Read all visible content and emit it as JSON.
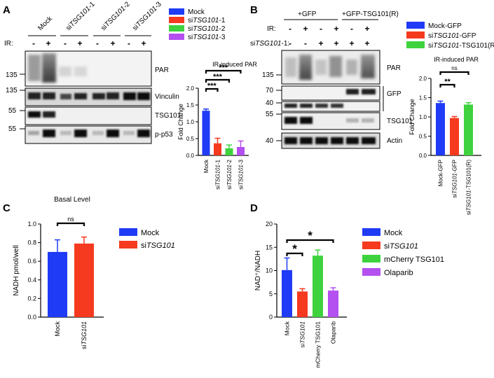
{
  "panels": {
    "A": {
      "letter": "A",
      "lanes": [
        {
          "label": "Mock"
        },
        {
          "prefix": "si",
          "italic": "TSG101",
          "suffix": "-1"
        },
        {
          "prefix": "si",
          "italic": "TSG101",
          "suffix": "-2"
        },
        {
          "prefix": "si",
          "italic": "TSG101",
          "suffix": "-3"
        }
      ],
      "ir_label": "IR:",
      "ir_signs": [
        "-",
        "+",
        "-",
        "+",
        "-",
        "+",
        "-",
        "+"
      ],
      "blots": [
        {
          "label": "PAR",
          "mw": "135"
        },
        {
          "label": "Vinculin",
          "mw": "135"
        },
        {
          "label": "TSG101",
          "mw": "55"
        },
        {
          "label": "p-p53",
          "mw": "55"
        }
      ],
      "legend": [
        {
          "prefix": "",
          "italic": "",
          "suffix": "Mock",
          "color": "#1f3bf5"
        },
        {
          "prefix": "si",
          "italic": "TSG101",
          "suffix": "-1",
          "color": "#f53a1f"
        },
        {
          "prefix": "si",
          "italic": "TSG101",
          "suffix": "-2",
          "color": "#3ed23e"
        },
        {
          "prefix": "si",
          "italic": "TSG101",
          "suffix": "-3",
          "color": "#b44ff0"
        }
      ]
    },
    "B": {
      "letter": "B",
      "groups": [
        "+GFP",
        "+GFP-TSG101(R)"
      ],
      "ir_label": "IR:",
      "ir_signs": [
        "-",
        "+",
        "-",
        "+",
        "-",
        "+"
      ],
      "si_label_prefix": "si",
      "si_label_italic": "TSG101",
      "si_label_suffix": "-1:",
      "si_signs": [
        "-",
        "-",
        "+",
        "+",
        "+",
        "+"
      ],
      "blots": [
        {
          "label": "PAR",
          "mw": "135"
        },
        {
          "label": "GFP",
          "mw": "70",
          "mw2": "40"
        },
        {
          "label": "TSG101",
          "mw": "55"
        },
        {
          "label": "Actin",
          "mw": "40"
        }
      ],
      "legend": [
        {
          "prefix": "Mock-GFP",
          "italic": "",
          "suffix": "",
          "color": "#1f3bf5"
        },
        {
          "prefix": "si",
          "italic": "TSG101",
          "suffix": "-GFP",
          "color": "#f53a1f"
        },
        {
          "prefix": "si",
          "italic": "TSG101",
          "suffix": "-TSG101(R)",
          "color": "#3ed23e"
        }
      ]
    },
    "C": {
      "letter": "C",
      "legend": [
        {
          "prefix": "Mock",
          "italic": "",
          "color": "#1f3bf5"
        },
        {
          "prefix": "si",
          "italic": "TSG101",
          "color": "#f53a1f"
        }
      ]
    },
    "D": {
      "letter": "D",
      "legend": [
        {
          "prefix": "Mock",
          "italic": "",
          "color": "#1f3bf5"
        },
        {
          "prefix": "si",
          "italic": "TSG101",
          "color": "#f53a1f"
        },
        {
          "prefix": "mCherry TSG101",
          "italic": "",
          "color": "#3ed23e"
        },
        {
          "prefix": "Olaparib",
          "italic": "",
          "color": "#b44ff0"
        }
      ]
    }
  },
  "chart_data": [
    {
      "id": "A",
      "type": "bar",
      "title": "IR-induced PAR",
      "ylabel": "Fold Change",
      "ylim": [
        0,
        2.0
      ],
      "yticks": [
        "0.0",
        "0.5",
        "1.0",
        "1.5",
        "2.0"
      ],
      "categories": [
        {
          "prefix": "Mock",
          "italic": "",
          "suffix": ""
        },
        {
          "prefix": "si",
          "italic": "TSG101",
          "suffix": "-1"
        },
        {
          "prefix": "si",
          "italic": "TSG101",
          "suffix": "-2"
        },
        {
          "prefix": "si",
          "italic": "TSG101",
          "suffix": "-3"
        }
      ],
      "values": [
        1.33,
        0.36,
        0.21,
        0.25
      ],
      "errors": [
        0.05,
        0.15,
        0.1,
        0.18
      ],
      "colors": [
        "#1f3bf5",
        "#f53a1f",
        "#3ed23e",
        "#b44ff0"
      ],
      "significance": [
        {
          "from": 0,
          "to": 1,
          "label": "***"
        },
        {
          "from": 0,
          "to": 2,
          "label": "***"
        },
        {
          "from": 0,
          "to": 3,
          "label": "***"
        }
      ]
    },
    {
      "id": "B",
      "type": "bar",
      "title": "IR-induced PAR",
      "ylabel": "Fold Change",
      "ylim": [
        0,
        2.0
      ],
      "yticks": [
        "0.0",
        "0.5",
        "1.0",
        "1.5",
        "2.0"
      ],
      "categories": [
        {
          "prefix": "Mock-GFP",
          "italic": "",
          "suffix": ""
        },
        {
          "prefix": "si",
          "italic": "TSG101",
          "suffix": "-GFP"
        },
        {
          "prefix": "si",
          "italic": "TSG101",
          "suffix": "-TSG101(R)"
        }
      ],
      "values": [
        1.36,
        0.97,
        1.32
      ],
      "errors": [
        0.05,
        0.04,
        0.05
      ],
      "colors": [
        "#1f3bf5",
        "#f53a1f",
        "#3ed23e"
      ],
      "significance": [
        {
          "from": 0,
          "to": 1,
          "label": "**"
        },
        {
          "from": 0,
          "to": 2,
          "label": "ns"
        }
      ]
    },
    {
      "id": "C",
      "type": "bar",
      "title": "Basal Level",
      "ylabel": "NADH pmol/well",
      "ylim": [
        0,
        1.0
      ],
      "yticks": [
        "0.0",
        "0.2",
        "0.4",
        "0.6",
        "0.8",
        "1.0"
      ],
      "categories": [
        {
          "prefix": "Mock",
          "italic": "",
          "suffix": ""
        },
        {
          "prefix": "si",
          "italic": "TSG101",
          "suffix": ""
        }
      ],
      "values": [
        0.7,
        0.79
      ],
      "errors": [
        0.13,
        0.07
      ],
      "colors": [
        "#1f3bf5",
        "#f53a1f"
      ],
      "significance": [
        {
          "from": 0,
          "to": 1,
          "label": "ns"
        }
      ]
    },
    {
      "id": "D",
      "type": "bar",
      "title": "",
      "ylabel": "NAD⁺/NADH",
      "ylim": [
        0,
        20
      ],
      "yticks": [
        "0",
        "5",
        "10",
        "15",
        "20"
      ],
      "categories": [
        {
          "prefix": "Mock",
          "italic": "",
          "suffix": ""
        },
        {
          "prefix": "si",
          "italic": "TSG101",
          "suffix": ""
        },
        {
          "prefix": "mCherry TSG101",
          "italic": "",
          "suffix": ""
        },
        {
          "prefix": "Olaparib",
          "italic": "",
          "suffix": ""
        }
      ],
      "values": [
        10.1,
        5.5,
        13.2,
        5.7
      ],
      "errors": [
        2.6,
        0.6,
        1.2,
        0.6
      ],
      "colors": [
        "#1f3bf5",
        "#f53a1f",
        "#3ed23e",
        "#b44ff0"
      ],
      "significance": [
        {
          "from": 0,
          "to": 1,
          "label": "*"
        },
        {
          "from": 0,
          "to": 3,
          "label": "*"
        }
      ]
    }
  ]
}
